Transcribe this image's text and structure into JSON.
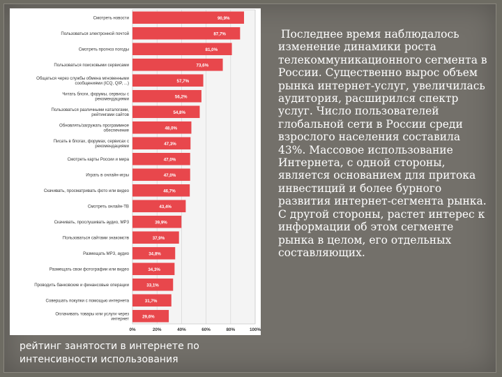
{
  "chart_data": {
    "type": "bar",
    "orientation": "horizontal",
    "categories": [
      "Смотреть новости",
      "Пользоваться электронной почтой",
      "Смотреть прогноз погоды",
      "Пользоваться поисковыми сервисами",
      "Общаться через службы обмена мгновенными сообщениями (ICQ, QIP, ...)",
      "Читать блоги, форумы, сервисы с рекомендациями",
      "Пользоваться различными каталогами, рейтингами сайтов",
      "Обновлять/загружать программное обеспечение",
      "Писать в блогах, форумах, сервисах с рекомендациями",
      "Смотреть карты России и мира",
      "Играть в онлайн-игры",
      "Скачивать, просматривать фото или видео",
      "Смотреть онлайн-ТВ",
      "Скачивать, прослушивать аудио, MP3",
      "Пользоваться сайтами знакомств",
      "Размещать MP3, аудио",
      "Размещать свои фотографии или видео",
      "Проводить банковские и финансовые операции",
      "Совершать покупки с помощью интернета",
      "Оплачивать товары или услуги через интернет"
    ],
    "value_labels": [
      "90,9%",
      "87,7%",
      "81,0%",
      "73,6%",
      "57,7%",
      "56,2%",
      "54,8%",
      "48,0%",
      "47,3%",
      "47,0%",
      "47,0%",
      "46,7%",
      "43,4%",
      "39,9%",
      "37,9%",
      "34,8%",
      "34,3%",
      "33,1%",
      "31,7%",
      "29,6%"
    ],
    "values": [
      90.9,
      87.7,
      81.0,
      73.6,
      57.7,
      56.2,
      54.8,
      48.0,
      47.3,
      47.0,
      47.0,
      46.7,
      43.4,
      39.9,
      37.9,
      34.8,
      34.3,
      33.1,
      31.7,
      29.6
    ],
    "x_ticks": [
      "0%",
      "20%",
      "40%",
      "60%",
      "80%",
      "100%"
    ],
    "xlim": [
      0,
      100
    ],
    "bar_color": "#e8474c",
    "grid": true
  },
  "caption": {
    "line1": "рейтинг занятости в интернете по",
    "line2": "интенсивности использования"
  },
  "body_text": "Последнее время наблюдалось изменение динамики роста телекоммуникационного сегмента в России. Существенно вырос объем рынка интернет-услуг, увеличилась аудитория, расширился спектр услуг. Число пользователей глобальной сети в России среди взрослого населения составила 43%. Массовое использование Интернета, с одной стороны, является основанием для притока инвестиций и более бурного развития интернет-сегмента рынка. С другой стороны, растет интерес к информации об этом сегменте рынка в целом, его отдельных составляющих."
}
